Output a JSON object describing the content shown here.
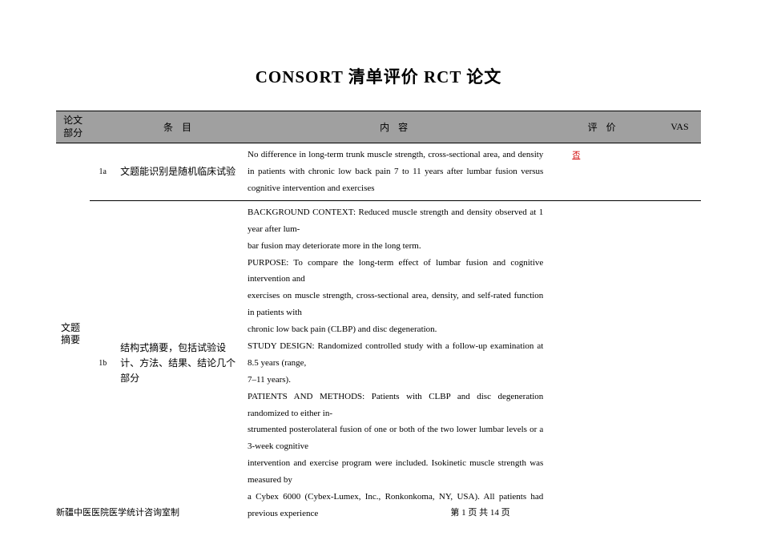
{
  "title": "CONSORT  清单评价 RCT 论文",
  "columns": {
    "section": "论文\n部分",
    "item": "条  目",
    "content": "内  容",
    "eval": "评  价",
    "vas": "VAS"
  },
  "rows": [
    {
      "section": "文题\n摘要",
      "id": "1a",
      "item": "文题能识别是随机临床试验",
      "content": "No difference in long-term trunk muscle strength, cross-sectional area, and density in patients with chronic low back pain 7 to 11 years after lumbar fusion versus cognitive intervention and exercises",
      "eval": "否",
      "vas": ""
    },
    {
      "section": "",
      "id": "1b",
      "item": "结构式摘要，包括试验设计、方法、结果、结论几个部分",
      "content": "BACKGROUND CONTEXT: Reduced muscle strength and density observed at 1 year after lum-\nbar fusion may deteriorate more in the long term.\nPURPOSE: To compare the long-term effect of lumbar fusion and cognitive intervention and\nexercises on muscle strength, cross-sectional area, density, and self-rated function in patients with\nchronic low back pain (CLBP) and disc degeneration.\nSTUDY DESIGN: Randomized controlled study with a follow-up examination at 8.5 years (range,\n7–11 years).\nPATIENTS AND METHODS: Patients with CLBP and disc degeneration randomized to either in-\nstrumented posterolateral fusion of one or both of the two lower lumbar levels or a 3-week cognitive\nintervention and exercise program were included. Isokinetic muscle strength was measured by\na Cybex 6000 (Cybex-Lumex, Inc., Ronkonkoma, NY, USA). All patients had previous experience",
      "eval": "",
      "vas": ""
    }
  ],
  "footer": {
    "left": "新疆中医医院医学统计咨询室制",
    "center": "第 1 页 共 14 页"
  },
  "colors": {
    "header_bg": "#a0a0a0",
    "border": "#000000",
    "eval_text": "#d00000",
    "background": "#ffffff"
  }
}
